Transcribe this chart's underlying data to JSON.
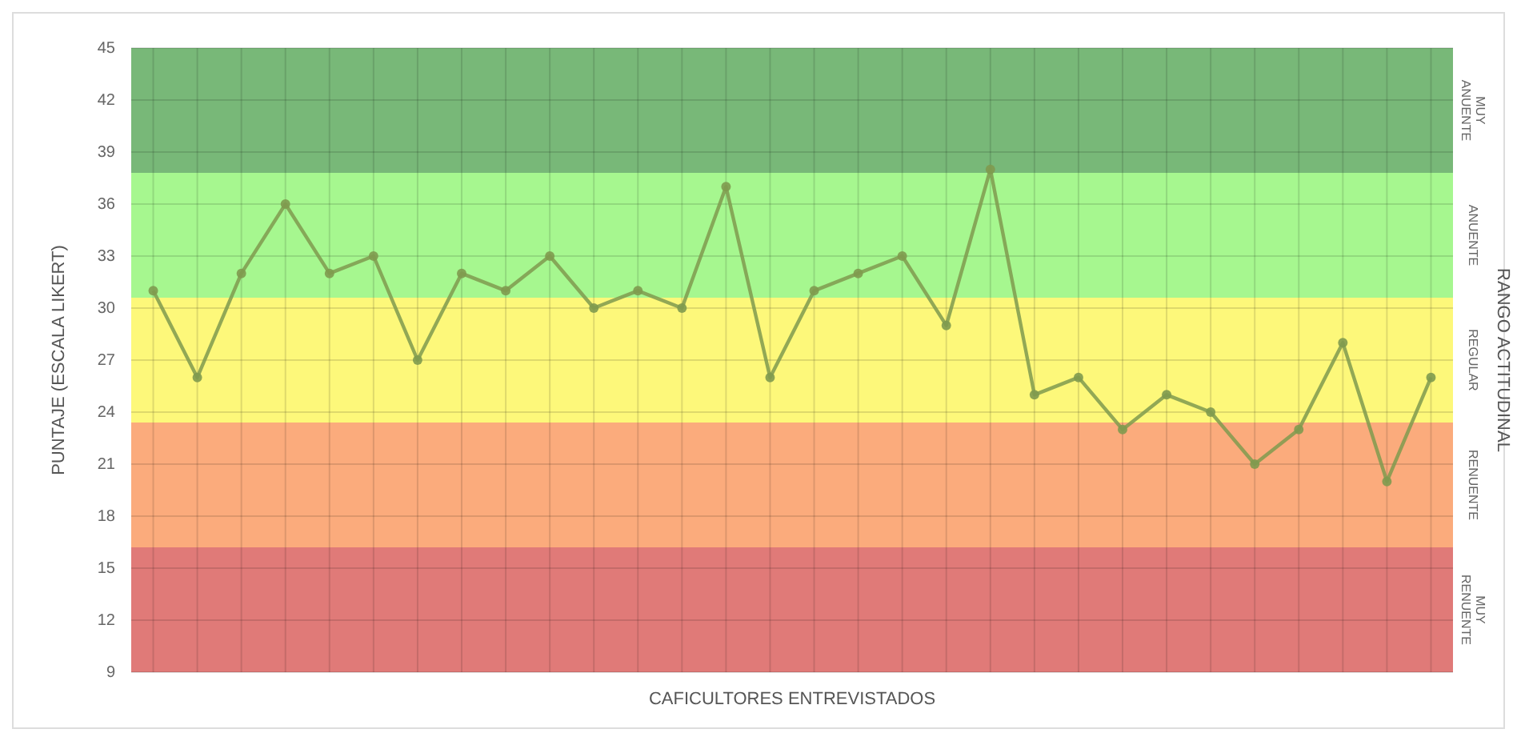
{
  "chart_data": {
    "type": "line",
    "xlabel": "CAFICULTORES ENTREVISTADOS",
    "ylabel": "PUNTAJE (ESCALA LIKERT)",
    "y2label": "RANGO ACTITUDINAL",
    "categories": [
      null,
      null,
      null,
      null,
      null,
      null,
      null,
      null,
      null,
      null,
      null,
      null,
      null,
      null,
      null,
      null,
      null,
      null,
      null,
      null,
      null,
      null,
      null,
      null,
      null,
      null,
      null,
      null,
      null,
      null
    ],
    "series": [
      {
        "color": "#7f9a4f",
        "values": [
          31,
          26,
          32,
          36,
          32,
          33,
          27,
          32,
          31,
          33,
          30,
          31,
          30,
          37,
          26,
          31,
          32,
          33,
          29,
          38,
          25,
          26,
          23,
          25,
          24,
          21,
          23,
          28,
          20,
          26
        ]
      }
    ],
    "ylim": [
      9,
      45
    ],
    "yticks": [
      9,
      12,
      15,
      18,
      21,
      24,
      27,
      30,
      33,
      36,
      39,
      42,
      45
    ],
    "bands": [
      {
        "axis": "y",
        "from": 9,
        "to": 16.2,
        "label": "MUY RENUENTE",
        "color": "#e07a78"
      },
      {
        "axis": "y",
        "from": 16.2,
        "to": 23.4,
        "label": "RENUENTE",
        "color": "#fbab7c"
      },
      {
        "axis": "y",
        "from": 23.4,
        "to": 30.6,
        "label": "REGULAR",
        "color": "#fdf87a"
      },
      {
        "axis": "y",
        "from": 30.6,
        "to": 37.8,
        "label": "ANUENTE",
        "color": "#a6f78f"
      },
      {
        "axis": "y",
        "from": 37.8,
        "to": 45,
        "label": "MUY ANUENTE",
        "color": "#78b878"
      }
    ],
    "grid": true,
    "marker": "circle",
    "line_style": "solid"
  }
}
